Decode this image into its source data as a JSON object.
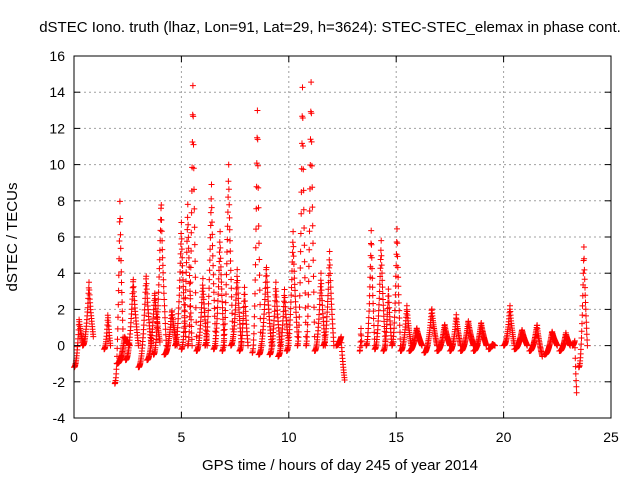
{
  "chart_data": {
    "type": "scatter",
    "title": "dSTEC Iono. truth (lhaz, Lon=91, Lat=29, h=3624): STEC-STEC_elemax in phase cont.",
    "xlabel": "GPS time / hours of day 245 of year 2014",
    "ylabel": "dSTEC  / TECUs",
    "xlim": [
      0,
      25
    ],
    "ylim": [
      -4,
      16
    ],
    "xticks": [
      0,
      5,
      10,
      15,
      20,
      25
    ],
    "yticks": [
      -4,
      -2,
      0,
      2,
      4,
      6,
      8,
      10,
      12,
      14,
      16
    ],
    "xtick_labels": [
      "0",
      "5",
      "10",
      "15",
      "20",
      "25"
    ],
    "ytick_labels": [
      "-4",
      "-2",
      "0",
      "2",
      "4",
      "6",
      "8",
      "10",
      "12",
      "14",
      "16"
    ],
    "grid": true,
    "marker": "+",
    "color": "#ff0000",
    "arcs_description": "Each satellite pass is shown as an arc of dSTEC values [start_hour, end_hour, start_value, peak_value, end_value]",
    "arcs": [
      [
        0.0,
        0.4,
        -1.2,
        1.5,
        0.2
      ],
      [
        0.4,
        0.9,
        0.0,
        3.5,
        0.5
      ],
      [
        1.4,
        1.7,
        -0.2,
        1.8,
        0.0
      ],
      [
        1.9,
        2.3,
        -2.1,
        8.2,
        0.0
      ],
      [
        2.0,
        2.6,
        -1.0,
        0.5,
        0.0
      ],
      [
        2.4,
        3.0,
        -0.8,
        3.8,
        0.0
      ],
      [
        3.0,
        3.6,
        -1.2,
        4.0,
        0.0
      ],
      [
        3.4,
        4.0,
        -0.8,
        3.0,
        0.2
      ],
      [
        3.7,
        4.3,
        -0.5,
        8.1,
        0.0
      ],
      [
        4.2,
        4.8,
        -0.5,
        2.0,
        0.0
      ],
      [
        4.7,
        5.2,
        0.0,
        6.8,
        0.5
      ],
      [
        5.0,
        5.5,
        -0.2,
        7.8,
        0.0
      ],
      [
        5.3,
        5.7,
        0.0,
        14.7,
        0.5
      ],
      [
        5.7,
        6.2,
        -0.3,
        3.7,
        0.0
      ],
      [
        6.1,
        6.6,
        0.0,
        8.9,
        0.0
      ],
      [
        6.5,
        7.0,
        -0.2,
        6.3,
        0.0
      ],
      [
        6.9,
        7.4,
        -0.3,
        10.0,
        0.5
      ],
      [
        7.3,
        7.8,
        0.0,
        4.2,
        0.0
      ],
      [
        7.7,
        8.1,
        -0.3,
        3.3,
        0.0
      ],
      [
        8.3,
        8.7,
        -0.4,
        13.3,
        0.0
      ],
      [
        8.6,
        9.2,
        -0.5,
        4.5,
        0.0
      ],
      [
        9.1,
        9.6,
        -0.5,
        3.5,
        0.0
      ],
      [
        9.5,
        10.0,
        -0.6,
        3.1,
        0.0
      ],
      [
        9.9,
        10.4,
        -0.3,
        6.3,
        0.5
      ],
      [
        10.4,
        10.8,
        0.0,
        14.6,
        0.5
      ],
      [
        10.8,
        11.2,
        0.0,
        14.9,
        0.5
      ],
      [
        11.2,
        11.7,
        -0.3,
        4.0,
        0.0
      ],
      [
        11.6,
        12.1,
        0.0,
        5.2,
        0.0
      ],
      [
        12.2,
        12.6,
        0.0,
        0.5,
        -1.9
      ],
      [
        13.3,
        13.4,
        -0.3,
        1.1,
        0.0
      ],
      [
        13.6,
        14.0,
        0.0,
        6.5,
        0.0
      ],
      [
        14.0,
        14.5,
        -0.2,
        5.8,
        0.0
      ],
      [
        14.4,
        14.8,
        -0.3,
        3.2,
        0.0
      ],
      [
        14.8,
        15.2,
        0.0,
        6.6,
        0.0
      ],
      [
        15.2,
        15.7,
        -0.3,
        2.2,
        0.0
      ],
      [
        15.6,
        16.2,
        -0.3,
        1.0,
        0.0
      ],
      [
        16.3,
        16.9,
        -0.4,
        2.1,
        0.0
      ],
      [
        16.9,
        17.5,
        -0.3,
        1.2,
        0.0
      ],
      [
        17.5,
        18.0,
        -0.3,
        1.7,
        0.0
      ],
      [
        18.0,
        18.6,
        -0.3,
        1.4,
        0.0
      ],
      [
        18.6,
        19.2,
        -0.3,
        1.3,
        0.0
      ],
      [
        19.3,
        19.6,
        -0.2,
        0.1,
        0.0
      ],
      [
        20.0,
        20.5,
        0.0,
        2.2,
        0.0
      ],
      [
        20.5,
        21.1,
        -0.2,
        0.9,
        0.0
      ],
      [
        21.2,
        21.8,
        -0.3,
        1.2,
        -0.6
      ],
      [
        21.9,
        22.5,
        -0.5,
        0.8,
        0.0
      ],
      [
        22.6,
        23.1,
        -0.3,
        0.7,
        0.0
      ],
      [
        23.2,
        23.4,
        0.0,
        0.3,
        -2.6
      ],
      [
        23.5,
        23.9,
        -1.2,
        5.6,
        0.0
      ]
    ]
  }
}
